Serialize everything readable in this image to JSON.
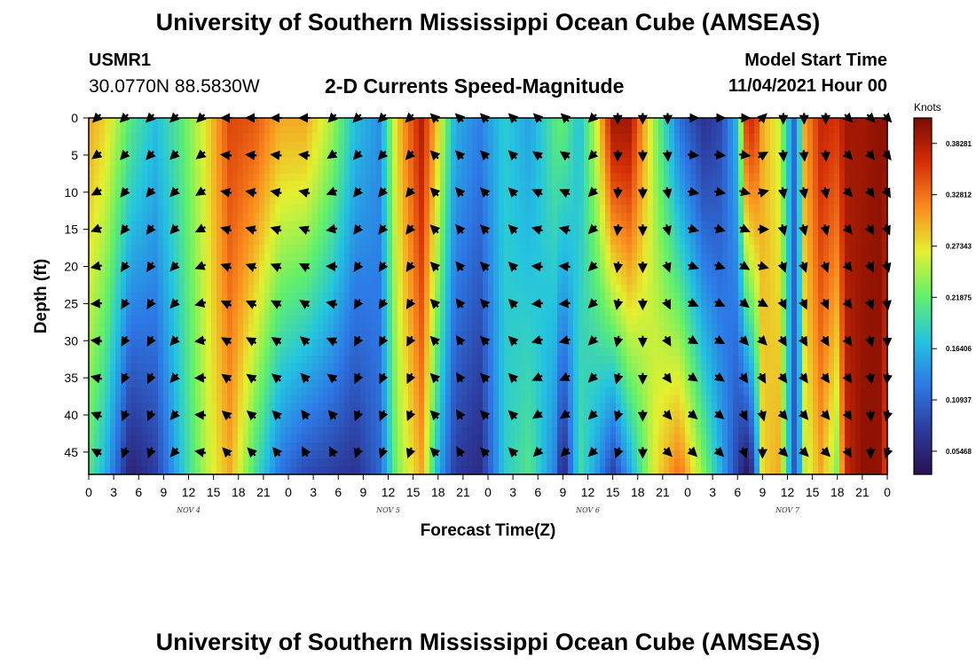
{
  "header": {
    "title": "University of Southern Mississippi Ocean Cube (AMSEAS)",
    "station_id": "USMR1",
    "coordinates": "30.0770N  88.5830W",
    "chart_title": "2-D Currents Speed-Magnitude",
    "model_label": "Model Start Time",
    "model_datetime": "11/04/2021 Hour 00"
  },
  "footer": {
    "title": "University of Southern Mississippi Ocean Cube (AMSEAS)"
  },
  "chart_data": {
    "type": "heatmap",
    "title": "2-D Currents Speed-Magnitude",
    "xlabel": "Forecast Time(Z)",
    "ylabel": "Depth (ft)",
    "xlim": [
      0,
      96
    ],
    "ylim": [
      48,
      0
    ],
    "x_tick_labels": [
      "0",
      "3",
      "6",
      "9",
      "12",
      "15",
      "18",
      "21",
      "0",
      "3",
      "6",
      "9",
      "12",
      "15",
      "18",
      "21",
      "0",
      "3",
      "6",
      "9",
      "12",
      "15",
      "18",
      "21",
      "0",
      "3",
      "6",
      "9",
      "12",
      "15",
      "18",
      "21",
      "0"
    ],
    "y_ticks": [
      0,
      5,
      10,
      15,
      20,
      25,
      30,
      35,
      40,
      45
    ],
    "y_tick_labels": [
      "0",
      "5",
      "10",
      "15",
      "20",
      "25",
      "30",
      "35",
      "40",
      "45"
    ],
    "day_labels": [
      {
        "label": "NOV 4",
        "hour": 12
      },
      {
        "label": "NOV 5",
        "hour": 36
      },
      {
        "label": "NOV 6",
        "hour": 60
      },
      {
        "label": "NOV 7",
        "hour": 84
      }
    ],
    "colorbar": {
      "units": "Knots",
      "tick_values": [
        0.05468,
        0.10937,
        0.16406,
        0.21875,
        0.27343,
        0.32812,
        0.38281
      ],
      "tick_labels": [
        "0.05468",
        "0.10937",
        "0.16406",
        "0.21875",
        "0.27343",
        "0.32812",
        "0.38281"
      ],
      "range": [
        0.03,
        0.41
      ],
      "colors": [
        "#2a1050",
        "#2d3a9c",
        "#2d79e6",
        "#24c4e0",
        "#62f06a",
        "#e4f030",
        "#fb8a1e",
        "#d42e06",
        "#7c0a02"
      ]
    },
    "speed_profile_hours": [
      0,
      2,
      5,
      8,
      11,
      14,
      17,
      20,
      23,
      26,
      29,
      32,
      35,
      37,
      40,
      42,
      44,
      47,
      50,
      53,
      56,
      57,
      59,
      61,
      63,
      65,
      68,
      71,
      74,
      76,
      78,
      79,
      80,
      81,
      83,
      85,
      86,
      88,
      90,
      91,
      93,
      95,
      96
    ],
    "speed_profile_surface": [
      0.3,
      0.28,
      0.21,
      0.17,
      0.21,
      0.27,
      0.35,
      0.34,
      0.3,
      0.3,
      0.25,
      0.17,
      0.14,
      0.28,
      0.38,
      0.28,
      0.16,
      0.13,
      0.18,
      0.15,
      0.21,
      0.22,
      0.17,
      0.26,
      0.39,
      0.39,
      0.24,
      0.12,
      0.07,
      0.09,
      0.17,
      0.35,
      0.37,
      0.3,
      0.26,
      0.1,
      0.3,
      0.37,
      0.36,
      0.39,
      0.39,
      0.4,
      0.4
    ],
    "speed_profile_bottom": [
      0.21,
      0.16,
      0.05,
      0.08,
      0.17,
      0.25,
      0.3,
      0.2,
      0.12,
      0.09,
      0.08,
      0.07,
      0.11,
      0.23,
      0.3,
      0.16,
      0.08,
      0.06,
      0.18,
      0.21,
      0.13,
      0.05,
      0.2,
      0.15,
      0.08,
      0.15,
      0.27,
      0.33,
      0.23,
      0.16,
      0.08,
      0.04,
      0.08,
      0.28,
      0.3,
      0.08,
      0.25,
      0.3,
      0.23,
      0.37,
      0.4,
      0.4,
      0.34
    ],
    "vector_hours": [
      1,
      4.3,
      7.4,
      10.3,
      13.5,
      16.6,
      19.6,
      22.6,
      26,
      29.3,
      32.3,
      35.3,
      38.6,
      41.6,
      44.6,
      47.6,
      51,
      54,
      57.3,
      60.6,
      63.6,
      66.6,
      69.6,
      72.6,
      75.8,
      78.8,
      81,
      83.5,
      86,
      88.6,
      91.3,
      94,
      96
    ],
    "vector_depths": [
      0,
      5,
      10,
      15,
      20,
      25,
      30,
      35,
      40,
      45
    ],
    "vector_surface_direction_deg": [
      225,
      225,
      225,
      225,
      225,
      270,
      270,
      270,
      270,
      225,
      225,
      225,
      225,
      315,
      315,
      315,
      315,
      315,
      315,
      225,
      180,
      180,
      180,
      90,
      90,
      90,
      45,
      180,
      180,
      180,
      135,
      135,
      135
    ],
    "vector_bottom_direction_deg": [
      300,
      200,
      200,
      220,
      280,
      315,
      315,
      320,
      330,
      330,
      200,
      200,
      200,
      315,
      330,
      315,
      315,
      225,
      225,
      225,
      200,
      180,
      135,
      135,
      135,
      160,
      180,
      135,
      135,
      135,
      150,
      180,
      200
    ]
  }
}
